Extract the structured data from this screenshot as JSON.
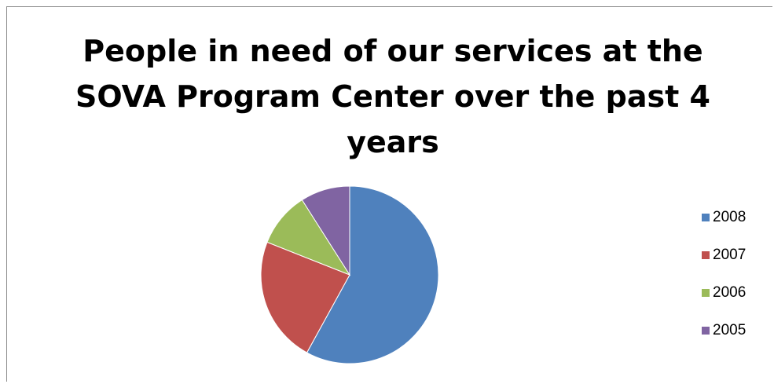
{
  "chart_data": {
    "type": "pie",
    "title": "People in need of our services at the SOVA Program Center over the past 4 years",
    "title_lines": [
      "People in need of our services at the",
      "SOVA Program Center over the past 4",
      "years"
    ],
    "categories": [
      "2008",
      "2007",
      "2006",
      "2005"
    ],
    "values": [
      58,
      23,
      10,
      9
    ],
    "colors": [
      "#4f81bd",
      "#c0504d",
      "#9bbb59",
      "#8064a2"
    ],
    "legend_position": "right",
    "start_angle": "12 o'clock, clockwise"
  }
}
